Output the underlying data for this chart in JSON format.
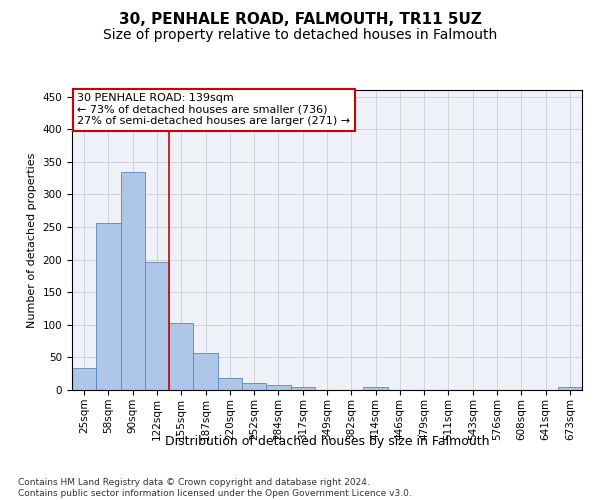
{
  "title1": "30, PENHALE ROAD, FALMOUTH, TR11 5UZ",
  "title2": "Size of property relative to detached houses in Falmouth",
  "xlabel": "Distribution of detached houses by size in Falmouth",
  "ylabel": "Number of detached properties",
  "bar_color": "#aec6e8",
  "bar_edge_color": "#5588bb",
  "categories": [
    "25sqm",
    "58sqm",
    "90sqm",
    "122sqm",
    "155sqm",
    "187sqm",
    "220sqm",
    "252sqm",
    "284sqm",
    "317sqm",
    "349sqm",
    "382sqm",
    "414sqm",
    "446sqm",
    "479sqm",
    "511sqm",
    "543sqm",
    "576sqm",
    "608sqm",
    "641sqm",
    "673sqm"
  ],
  "values": [
    34,
    256,
    335,
    197,
    103,
    57,
    18,
    10,
    7,
    4,
    0,
    0,
    4,
    0,
    0,
    0,
    0,
    0,
    0,
    0,
    4
  ],
  "ylim": [
    0,
    460
  ],
  "yticks": [
    0,
    50,
    100,
    150,
    200,
    250,
    300,
    350,
    400,
    450
  ],
  "vline_x": 3.5,
  "vline_color": "#cc0000",
  "annotation_line1": "30 PENHALE ROAD: 139sqm",
  "annotation_line2": "← 73% of detached houses are smaller (736)",
  "annotation_line3": "27% of semi-detached houses are larger (271) →",
  "annotation_box_color": "#ffffff",
  "annotation_box_edge": "#cc0000",
  "footnote": "Contains HM Land Registry data © Crown copyright and database right 2024.\nContains public sector information licensed under the Open Government Licence v3.0.",
  "grid_color": "#cccccc",
  "background_color": "#eef2f8",
  "title1_fontsize": 11,
  "title2_fontsize": 10,
  "xlabel_fontsize": 9,
  "ylabel_fontsize": 8,
  "tick_fontsize": 7.5,
  "annotation_fontsize": 8,
  "footnote_fontsize": 6.5
}
